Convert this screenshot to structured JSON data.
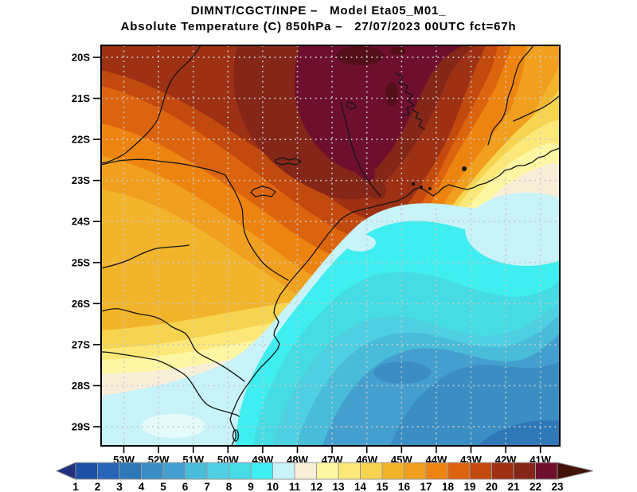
{
  "header": {
    "line1": "DIMNT/CGCT/INPE –   Model Eta05_M01_",
    "line2": "Absolute Temperature (C) 850hPa –   27/07/2023 00UTC fct=67h"
  },
  "axes": {
    "lat_labels": [
      "20S",
      "21S",
      "22S",
      "23S",
      "24S",
      "25S",
      "26S",
      "27S",
      "28S",
      "29S"
    ],
    "lon_labels": [
      "53W",
      "52W",
      "51W",
      "50W",
      "49W",
      "48W",
      "47W",
      "46W",
      "45W",
      "44W",
      "43W",
      "42W",
      "41W"
    ]
  },
  "colorbar": {
    "values": [
      "1",
      "2",
      "3",
      "4",
      "5",
      "6",
      "7",
      "8",
      "9",
      "10",
      "11",
      "12",
      "13",
      "14",
      "15",
      "16",
      "17",
      "18",
      "19",
      "20",
      "21",
      "22",
      "23"
    ],
    "colors": [
      "#1d4fa6",
      "#2765b6",
      "#2f78b8",
      "#3b8ec4",
      "#459fce",
      "#49bcd9",
      "#4fd0e2",
      "#46dce6",
      "#3eeef0",
      "#c7f3f9",
      "#f8efd9",
      "#fdf7a3",
      "#fbe878",
      "#f7d44f",
      "#f2b42a",
      "#f0a01e",
      "#ee8410",
      "#dd640e",
      "#c24a0e",
      "#9e3014",
      "#842618",
      "#6e0f2e"
    ],
    "left_arrow_color": "#20307e",
    "right_arrow_color": "#431208",
    "above_max_color": "#531018"
  },
  "chart_data": {
    "type": "heatmap",
    "title": "Absolute Temperature (C) 850hPa – 27/07/2023 00UTC fct=67h",
    "model": "Eta05_M01_",
    "source_label": "DIMNT/CGCT/INPE",
    "scale_values": [
      1,
      2,
      3,
      4,
      5,
      6,
      7,
      8,
      9,
      10,
      11,
      12,
      13,
      14,
      15,
      16,
      17,
      18,
      19,
      20,
      21,
      22,
      23
    ],
    "scale_unit": "C",
    "lat_range": [
      "20S",
      "29S"
    ],
    "lon_range": [
      "53W",
      "41W"
    ],
    "legend_position": "bottom"
  }
}
